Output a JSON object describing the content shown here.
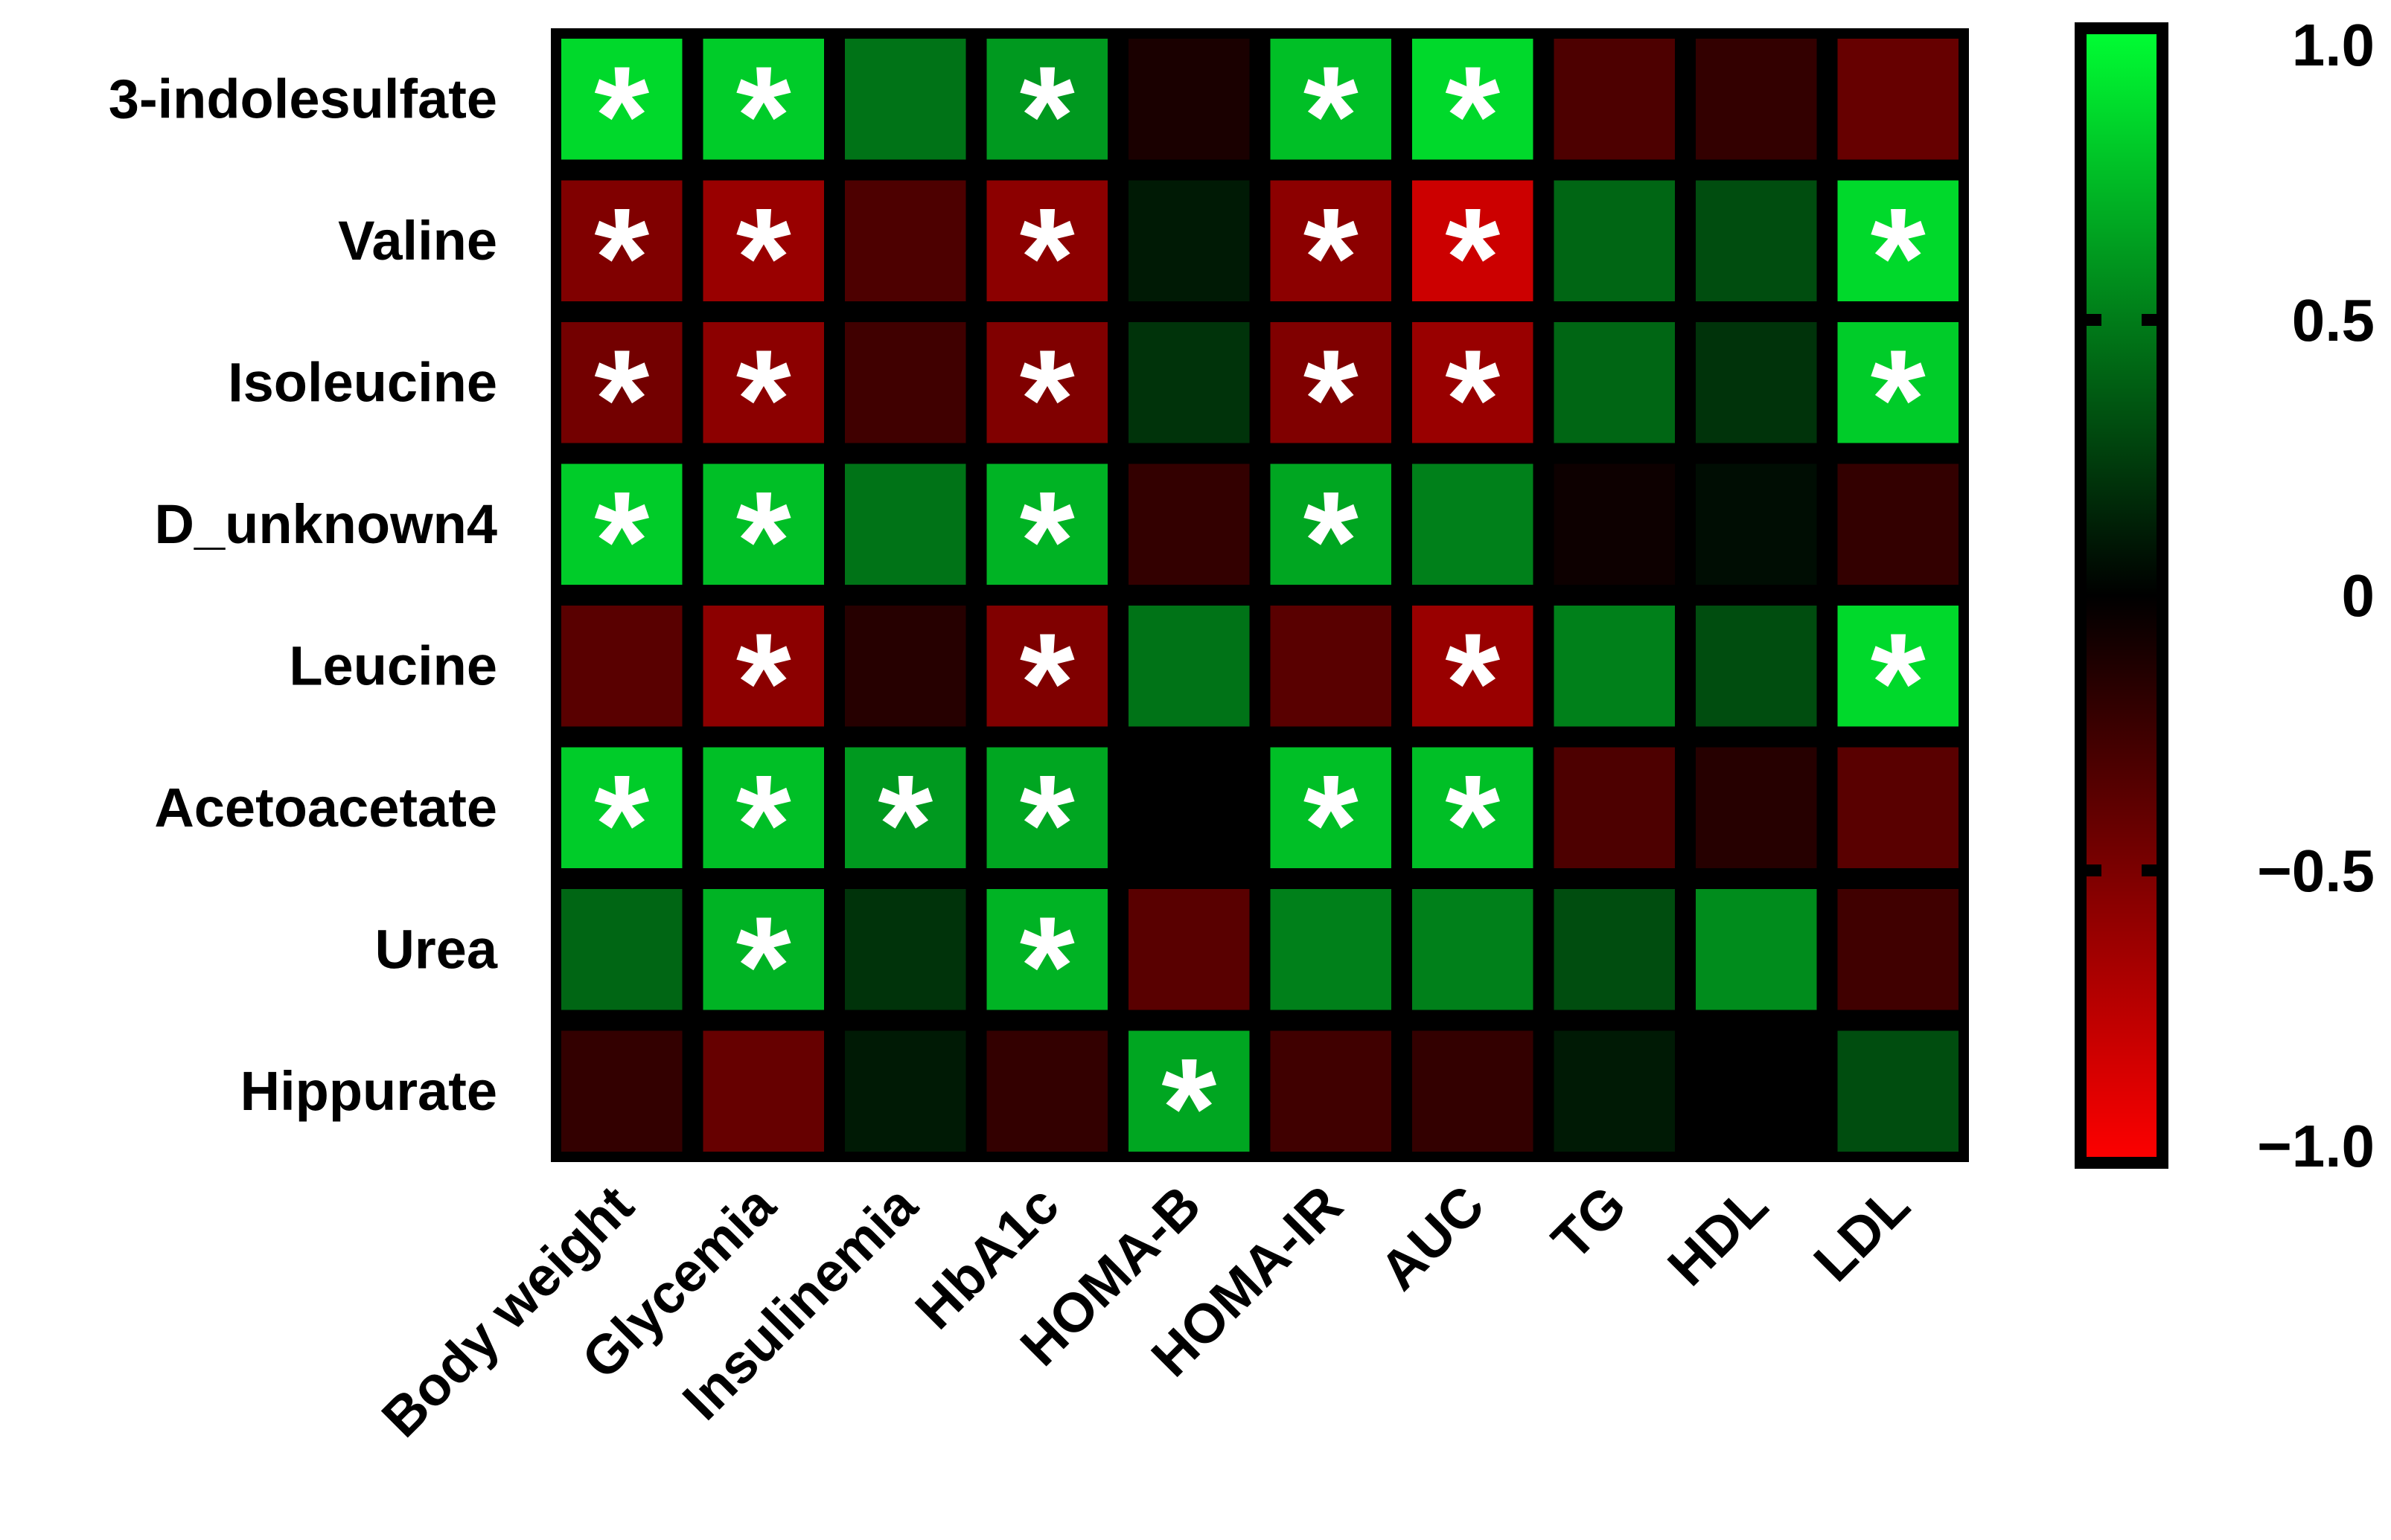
{
  "chart_data": {
    "type": "heatmap",
    "title": "",
    "xlabel": "",
    "ylabel": "",
    "rows": [
      "3-indolesulfate",
      "Valine",
      "Isoleucine",
      "D_unknown4",
      "Leucine",
      "Acetoacetate",
      "Urea",
      "Hippurate"
    ],
    "columns": [
      "Body weight",
      "Glycemia",
      "Insulinemia",
      "HbA1c",
      "HOMA-B",
      "HOMA-IR",
      "AUC",
      "TG",
      "HDL",
      "LDL"
    ],
    "values": [
      [
        0.85,
        0.8,
        0.45,
        0.6,
        -0.1,
        0.75,
        0.85,
        -0.3,
        -0.2,
        -0.4
      ],
      [
        -0.5,
        -0.6,
        -0.3,
        -0.55,
        0.1,
        -0.55,
        -0.8,
        0.4,
        0.3,
        0.85
      ],
      [
        -0.45,
        -0.55,
        -0.25,
        -0.5,
        0.2,
        -0.5,
        -0.6,
        0.4,
        0.2,
        0.8
      ],
      [
        0.8,
        0.75,
        0.45,
        0.7,
        -0.2,
        0.65,
        0.5,
        -0.05,
        0.05,
        -0.2
      ],
      [
        -0.35,
        -0.55,
        -0.15,
        -0.5,
        0.45,
        -0.35,
        -0.6,
        0.5,
        0.3,
        0.85
      ],
      [
        0.8,
        0.75,
        0.6,
        0.65,
        0.0,
        0.75,
        0.75,
        -0.3,
        -0.15,
        -0.35
      ],
      [
        0.4,
        0.7,
        0.2,
        0.7,
        -0.35,
        0.5,
        0.5,
        0.3,
        0.55,
        -0.25
      ],
      [
        -0.2,
        -0.4,
        0.1,
        -0.2,
        0.65,
        -0.25,
        -0.2,
        0.1,
        0.0,
        0.3
      ]
    ],
    "significant": [
      [
        1,
        1,
        0,
        1,
        0,
        1,
        1,
        0,
        0,
        0
      ],
      [
        1,
        1,
        0,
        1,
        0,
        1,
        1,
        0,
        0,
        1
      ],
      [
        1,
        1,
        0,
        1,
        0,
        1,
        1,
        0,
        0,
        1
      ],
      [
        1,
        1,
        0,
        1,
        0,
        1,
        0,
        0,
        0,
        0
      ],
      [
        0,
        1,
        0,
        1,
        0,
        0,
        1,
        0,
        0,
        1
      ],
      [
        1,
        1,
        1,
        1,
        0,
        1,
        1,
        0,
        0,
        0
      ],
      [
        0,
        1,
        0,
        1,
        0,
        0,
        0,
        0,
        0,
        0
      ],
      [
        0,
        0,
        0,
        0,
        1,
        0,
        0,
        0,
        0,
        0
      ]
    ],
    "significance_marker": "*",
    "color_scale": {
      "min": -1.0,
      "max": 1.0,
      "negative_color": "#ff0000",
      "zero_color": "#000000",
      "positive_color": "#00ff33",
      "ticks": [
        {
          "value": 1.0,
          "label": "1.0"
        },
        {
          "value": 0.5,
          "label": "0.5"
        },
        {
          "value": 0.0,
          "label": "0"
        },
        {
          "value": -0.5,
          "label": "−0.5"
        },
        {
          "value": -1.0,
          "label": "−1.0"
        }
      ]
    },
    "legend_position": "right"
  }
}
